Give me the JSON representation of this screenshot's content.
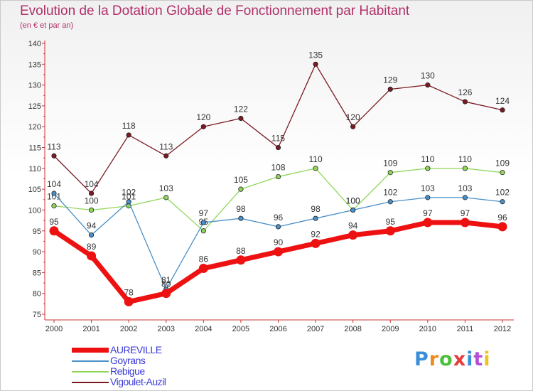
{
  "header": {
    "title": "Evolution de la Dotation Globale de Fonctionnement par Habitant",
    "subtitle": "(en € et par an)"
  },
  "logo": {
    "text": "Proxiti",
    "letter_colors": [
      "#3a8fd8",
      "#f08a1c",
      "#4bbf3a",
      "#e63b3b",
      "#3a8fd8",
      "#b44fd6",
      "#f0c21c"
    ]
  },
  "chart_data": {
    "type": "line",
    "x": [
      2000,
      2001,
      2002,
      2003,
      2004,
      2005,
      2006,
      2007,
      2008,
      2009,
      2010,
      2011,
      2012
    ],
    "ylim": [
      75,
      140
    ],
    "yticks": [
      75,
      80,
      85,
      90,
      95,
      100,
      105,
      110,
      115,
      120,
      125,
      130,
      135,
      140
    ],
    "grid": false,
    "legend_position": "bottom-left",
    "series": [
      {
        "name": "Vigoulet-Auzil",
        "color": "#7a1a22",
        "values": [
          113,
          104,
          118,
          113,
          120,
          122,
          115,
          135,
          120,
          129,
          130,
          126,
          124
        ]
      },
      {
        "name": "Rebigue",
        "color": "#8fd65a",
        "values": [
          101,
          100,
          101,
          103,
          95,
          105,
          108,
          110,
          100,
          109,
          110,
          110,
          109
        ]
      },
      {
        "name": "Goyrans",
        "color": "#4a90c8",
        "values": [
          104,
          94,
          102,
          81,
          97,
          98,
          96,
          98,
          100,
          102,
          103,
          103,
          102
        ]
      },
      {
        "name": "AUREVILLE",
        "color": "#ee1111",
        "values": [
          95,
          89,
          78,
          80,
          86,
          88,
          90,
          92,
          94,
          95,
          97,
          97,
          96
        ]
      }
    ],
    "legend_order": [
      "AUREVILLE",
      "Goyrans",
      "Rebigue",
      "Vigoulet-Auzil"
    ],
    "legend_label_color": "#3a3ad8"
  }
}
